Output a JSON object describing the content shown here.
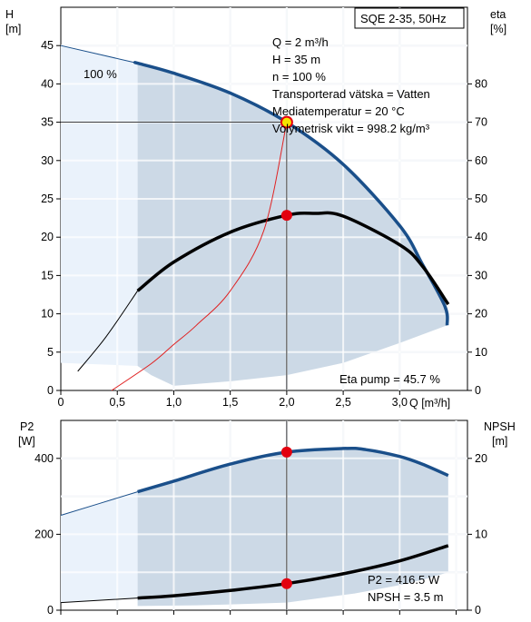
{
  "chart_data": [
    {
      "type": "line",
      "title": "SQE 2-35, 50Hz",
      "xlabel": "Q [m³/h]",
      "x_ticks": [
        "0",
        "0,5",
        "1,0",
        "1,5",
        "2,0",
        "2,5",
        "3,0"
      ],
      "xlim": [
        0,
        3.6
      ],
      "left_axis": {
        "label_line1": "H",
        "label_line2": "[m]",
        "range": [
          0,
          50
        ],
        "ticks": [
          "0",
          "5",
          "10",
          "15",
          "20",
          "25",
          "30",
          "35",
          "40",
          "45"
        ]
      },
      "right_axis": {
        "label_line1": "eta",
        "label_line2": "[%]",
        "range": [
          0,
          100
        ],
        "ticks": [
          "0",
          "10",
          "20",
          "30",
          "40",
          "50",
          "60",
          "70",
          "80"
        ]
      },
      "grid": true,
      "series": [
        {
          "key": "H",
          "axis": "left",
          "color": "#1a4f8a",
          "points": [
            [
              0,
              45
            ],
            [
              0.68,
              42.7
            ],
            [
              1.0,
              41.4
            ],
            [
              1.5,
              38.8
            ],
            [
              2.0,
              35
            ],
            [
              2.5,
              29.5
            ],
            [
              3.0,
              21.5
            ],
            [
              3.2,
              16.5
            ],
            [
              3.4,
              11
            ],
            [
              3.42,
              8.5
            ]
          ]
        },
        {
          "key": "eta",
          "axis": "right",
          "color": "#000000",
          "points": [
            [
              0.15,
              5
            ],
            [
              0.4,
              14
            ],
            [
              0.68,
              26
            ],
            [
              1.0,
              33.5
            ],
            [
              1.5,
              41.3
            ],
            [
              2.0,
              45.7
            ],
            [
              2.25,
              46.2
            ],
            [
              2.5,
              45.5
            ],
            [
              3.0,
              38
            ],
            [
              3.2,
              32.5
            ],
            [
              3.43,
              22.5
            ]
          ]
        },
        {
          "key": "system",
          "axis": "left",
          "color": "#e02020",
          "points": [
            [
              0.45,
              0
            ],
            [
              0.8,
              3.5
            ],
            [
              1.0,
              6
            ],
            [
              1.2,
              8.5
            ],
            [
              1.5,
              13
            ],
            [
              1.8,
              21
            ],
            [
              2.0,
              35
            ]
          ]
        }
      ],
      "curve_label": "100 %",
      "operating_point": {
        "q": 2.0,
        "h": 35,
        "eta": 45.7
      },
      "info_lines": [
        "Q = 2 m³/h",
        "H = 35 m",
        "n = 100 %",
        "Transporterad vätska = Vatten",
        "Mediatemperatur = 20 °C",
        "Volymetrisk vikt = 998.2 kg/m³"
      ],
      "eta_label": "Eta pump = 45.7 %"
    },
    {
      "type": "line",
      "xlim": [
        0,
        3.6
      ],
      "left_axis": {
        "label_line1": "P2",
        "label_line2": "[W]",
        "range": [
          0,
          500
        ],
        "ticks": [
          "0",
          "200",
          "400"
        ]
      },
      "right_axis": {
        "label_line1": "NPSH",
        "label_line2": "[m]",
        "range": [
          0,
          25
        ],
        "ticks": [
          "0",
          "10",
          "20"
        ]
      },
      "grid": true,
      "series": [
        {
          "key": "P2",
          "axis": "left",
          "color": "#1a4f8a",
          "points": [
            [
              0,
              250
            ],
            [
              0.68,
              312
            ],
            [
              1.0,
              340
            ],
            [
              1.5,
              385
            ],
            [
              2.0,
              416.5
            ],
            [
              2.5,
              426
            ],
            [
              2.7,
              423
            ],
            [
              3.0,
              405
            ],
            [
              3.2,
              385
            ],
            [
              3.43,
              355
            ]
          ]
        },
        {
          "key": "NPSH",
          "axis": "right",
          "color": "#000000",
          "points": [
            [
              0,
              1
            ],
            [
              0.68,
              1.6
            ],
            [
              1.0,
              1.9
            ],
            [
              1.5,
              2.6
            ],
            [
              2.0,
              3.5
            ],
            [
              2.5,
              4.8
            ],
            [
              3.0,
              6.5
            ],
            [
              3.43,
              8.5
            ]
          ]
        }
      ],
      "operating_point": {
        "q": 2.0,
        "p2": 416.5,
        "npsh": 3.5
      },
      "info_lines": [
        "P2 = 416.5 W",
        "NPSH = 3.5 m"
      ]
    }
  ]
}
